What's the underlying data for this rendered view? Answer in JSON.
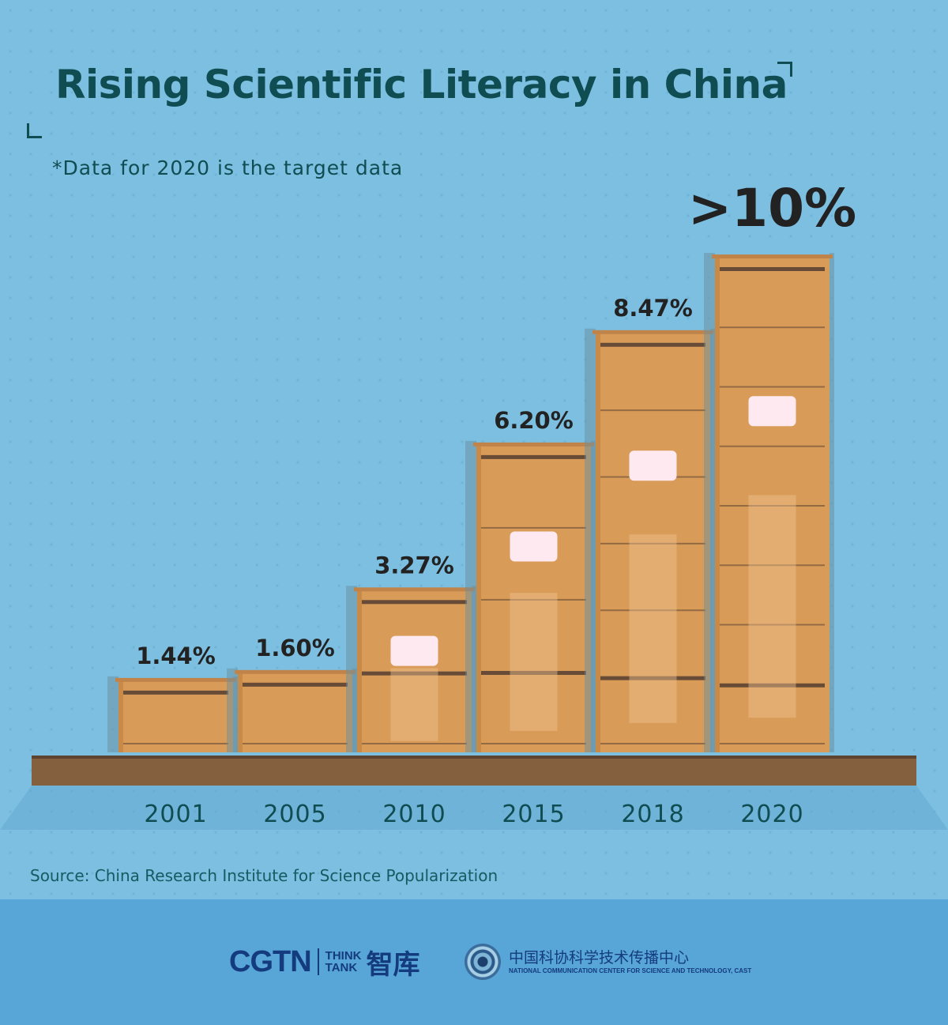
{
  "header": {
    "title": "Rising Scientific Literacy in China",
    "subtitle": "*Data for 2020 is the target data"
  },
  "chart_data": {
    "type": "bar",
    "title": "Rising Scientific Literacy in China",
    "categories": [
      "2001",
      "2005",
      "2010",
      "2015",
      "2018",
      "2020"
    ],
    "values": [
      1.44,
      1.6,
      3.27,
      6.2,
      8.47,
      10
    ],
    "data_labels": [
      "1.44%",
      "1.60%",
      "3.27%",
      "6.20%",
      "8.47%",
      ">10%"
    ],
    "xlabel": "",
    "ylabel": "",
    "grid": false,
    "annotation": "*Data for 2020 is the target data"
  },
  "source": "Source: China Research Institute for Science Popularization",
  "footer": {
    "brand_cgtn": "CGTN",
    "brand_think": "THINK",
    "brand_tank": "TANK",
    "brand_zh": "智库",
    "cast_zh": "中国科协科学技术传播中心",
    "cast_en": "NATIONAL COMMUNICATION CENTER FOR SCIENCE AND TECHNOLOGY, CAST"
  },
  "colors": {
    "background": "#7cbfe0",
    "box": "#d99c58",
    "box_line": "#5a4233",
    "shelf": "#84603f",
    "text_dark": "#104d52",
    "label": "#222222",
    "footer": "#57a6d7",
    "brand": "#143b7e"
  }
}
